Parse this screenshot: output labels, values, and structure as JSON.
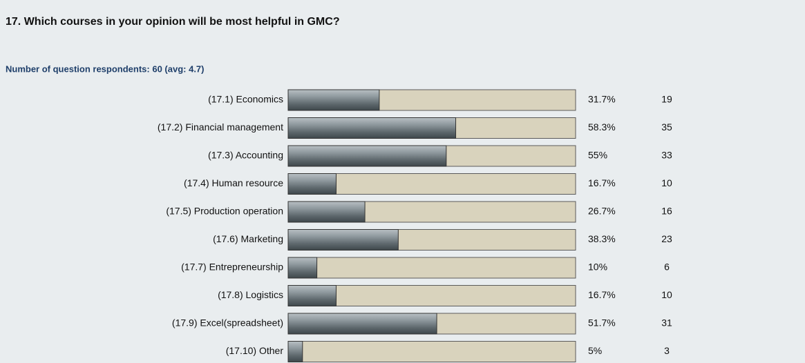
{
  "chart_data": {
    "type": "bar",
    "title": "17. Which courses in your opinion will be most helpful in GMC?",
    "subtitle": "Number of question respondents: 60 (avg: 4.7)",
    "categories": [
      "(17.1) Economics",
      "(17.2) Financial management",
      "(17.3) Accounting",
      "(17.4) Human resource",
      "(17.5) Production operation",
      "(17.6) Marketing",
      "(17.7) Entrepreneurship",
      "(17.8) Logistics",
      "(17.9) Excel(spreadsheet)",
      "(17.10) Other"
    ],
    "values": [
      31.7,
      58.3,
      55,
      16.7,
      26.7,
      38.3,
      10,
      16.7,
      51.7,
      5
    ],
    "value_labels": [
      "31.7%",
      "58.3%",
      "55%",
      "16.7%",
      "26.7%",
      "38.3%",
      "10%",
      "16.7%",
      "51.7%",
      "5%"
    ],
    "counts": [
      19,
      35,
      33,
      10,
      16,
      23,
      6,
      10,
      31,
      3
    ],
    "color": "#6f7a80",
    "track_color": "#d9d3bd",
    "xlim": [
      0,
      100
    ]
  }
}
